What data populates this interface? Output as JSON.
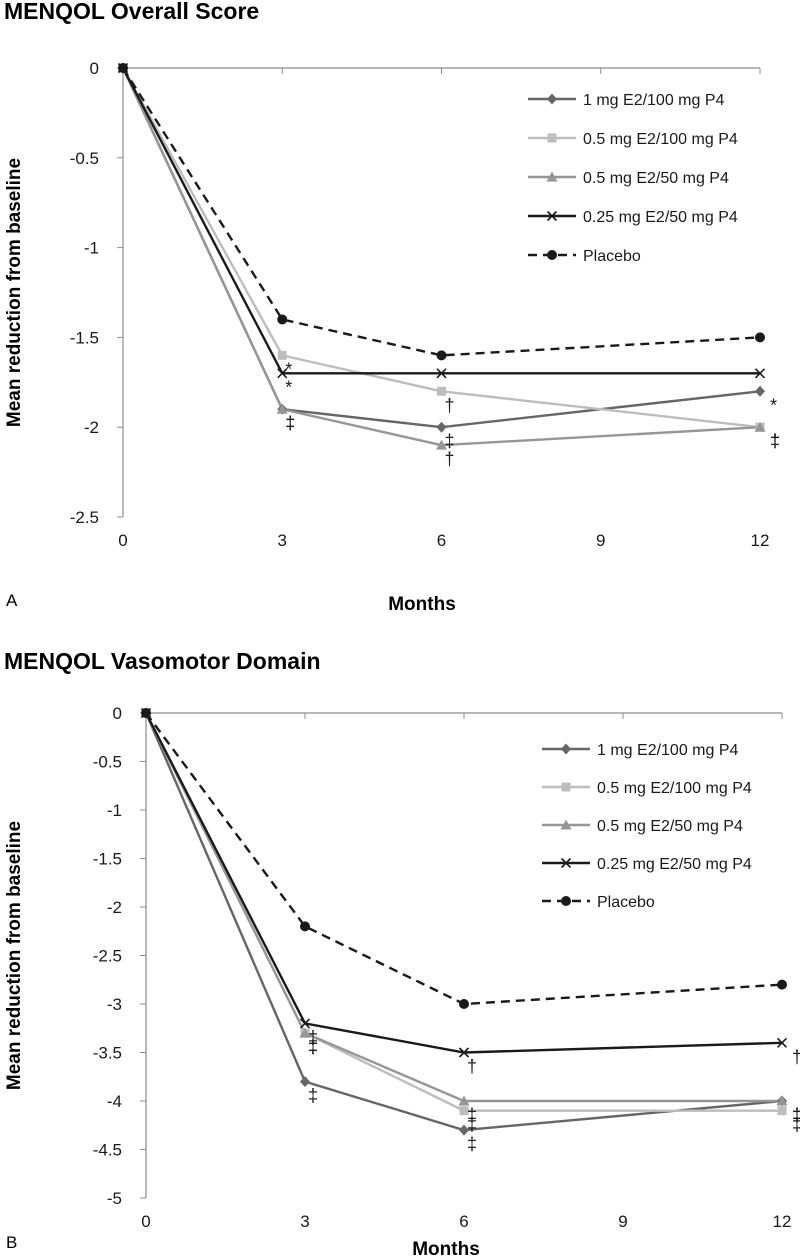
{
  "chart_data": [
    {
      "type": "line",
      "panel_label": "A",
      "title": "MENQOL Overall Score",
      "xlabel": "Months",
      "ylabel": "Mean reduction from baseline",
      "x_ticks": [
        "0",
        "3",
        "6",
        "9",
        "12"
      ],
      "xlim": [
        0,
        12
      ],
      "y_ticks": [
        "0",
        "-0.5",
        "-1",
        "-1.5",
        "-2",
        "-2.5"
      ],
      "ylim": [
        -2.5,
        0
      ],
      "grid": false,
      "legend_position": "top-right",
      "series": [
        {
          "name": "1 mg E2/100 mg P4",
          "color": "#666666",
          "line": "solid",
          "marker": "diamond",
          "x": [
            0,
            3,
            6,
            12
          ],
          "y": [
            0,
            -1.9,
            -2.0,
            -1.8
          ],
          "annotations": [
            {
              "x": 3,
              "label": "‡"
            },
            {
              "x": 6,
              "label": "‡"
            },
            {
              "x": 12,
              "label": "*"
            }
          ]
        },
        {
          "name": "0.5 mg E2/100 mg P4",
          "color": "#bdbdbd",
          "line": "solid",
          "marker": "square",
          "x": [
            0,
            3,
            6,
            12
          ],
          "y": [
            0,
            -1.6,
            -1.8,
            -2.0
          ],
          "annotations": [
            {
              "x": 3,
              "label": "*"
            },
            {
              "x": 6,
              "label": "†"
            },
            {
              "x": 12,
              "label": "‡"
            }
          ]
        },
        {
          "name": "0.5 mg E2/50 mg P4",
          "color": "#969696",
          "line": "solid",
          "marker": "triangle",
          "x": [
            0,
            3,
            6,
            12
          ],
          "y": [
            0,
            -1.9,
            -2.1,
            -2.0
          ],
          "annotations": [
            {
              "x": 3,
              "label": "‡"
            },
            {
              "x": 6,
              "label": "†"
            },
            {
              "x": 12,
              "label": "†"
            }
          ]
        },
        {
          "name": "0.25 mg E2/50 mg P4",
          "color": "#1a1a1a",
          "line": "solid",
          "marker": "x",
          "x": [
            0,
            3,
            6,
            12
          ],
          "y": [
            0,
            -1.7,
            -1.7,
            -1.7
          ],
          "annotations": [
            {
              "x": 3,
              "label": "*"
            }
          ]
        },
        {
          "name": "Placebo",
          "color": "#1a1a1a",
          "line": "dashed",
          "marker": "circle",
          "x": [
            0,
            3,
            6,
            12
          ],
          "y": [
            0,
            -1.4,
            -1.6,
            -1.5
          ],
          "annotations": []
        }
      ]
    },
    {
      "type": "line",
      "panel_label": "B",
      "title": "MENQOL Vasomotor Domain",
      "xlabel": "Months",
      "ylabel": "Mean reduction from baseline",
      "x_ticks": [
        "0",
        "3",
        "6",
        "9",
        "12"
      ],
      "xlim": [
        0,
        12
      ],
      "y_ticks": [
        "0",
        "-0.5",
        "-1",
        "-1.5",
        "-2",
        "-2.5",
        "-3",
        "-3.5",
        "-4",
        "-4.5",
        "-5"
      ],
      "ylim": [
        -5,
        0
      ],
      "grid": false,
      "legend_position": "top-right",
      "series": [
        {
          "name": "1 mg E2/100 mg P4",
          "color": "#666666",
          "line": "solid",
          "marker": "diamond",
          "x": [
            0,
            3,
            6,
            12
          ],
          "y": [
            0,
            -3.8,
            -4.3,
            -4.0
          ],
          "annotations": [
            {
              "x": 3,
              "label": "‡"
            },
            {
              "x": 6,
              "label": "‡"
            },
            {
              "x": 12,
              "label": "‡"
            }
          ]
        },
        {
          "name": "0.5 mg E2/100 mg P4",
          "color": "#bdbdbd",
          "line": "solid",
          "marker": "square",
          "x": [
            0,
            3,
            6,
            12
          ],
          "y": [
            0,
            -3.3,
            -4.1,
            -4.1
          ],
          "annotations": [
            {
              "x": 3,
              "label": "‡"
            },
            {
              "x": 6,
              "label": "‡"
            },
            {
              "x": 12,
              "label": "‡"
            }
          ]
        },
        {
          "name": "0.5 mg E2/50 mg P4",
          "color": "#969696",
          "line": "solid",
          "marker": "triangle",
          "x": [
            0,
            3,
            6,
            12
          ],
          "y": [
            0,
            -3.3,
            -4.0,
            -4.0
          ],
          "annotations": [
            {
              "x": 3,
              "label": "‡"
            },
            {
              "x": 6,
              "label": "‡"
            },
            {
              "x": 12,
              "label": "‡"
            }
          ]
        },
        {
          "name": "0.25 mg E2/50 mg P4",
          "color": "#1a1a1a",
          "line": "solid",
          "marker": "x",
          "x": [
            0,
            3,
            6,
            12
          ],
          "y": [
            0,
            -3.2,
            -3.5,
            -3.4
          ],
          "annotations": [
            {
              "x": 3,
              "label": "‡"
            },
            {
              "x": 6,
              "label": "†"
            },
            {
              "x": 12,
              "label": "†"
            }
          ]
        },
        {
          "name": "Placebo",
          "color": "#1a1a1a",
          "line": "dashed",
          "marker": "circle",
          "x": [
            0,
            3,
            6,
            12
          ],
          "y": [
            0,
            -2.2,
            -3.0,
            -2.8
          ],
          "annotations": []
        }
      ]
    }
  ]
}
